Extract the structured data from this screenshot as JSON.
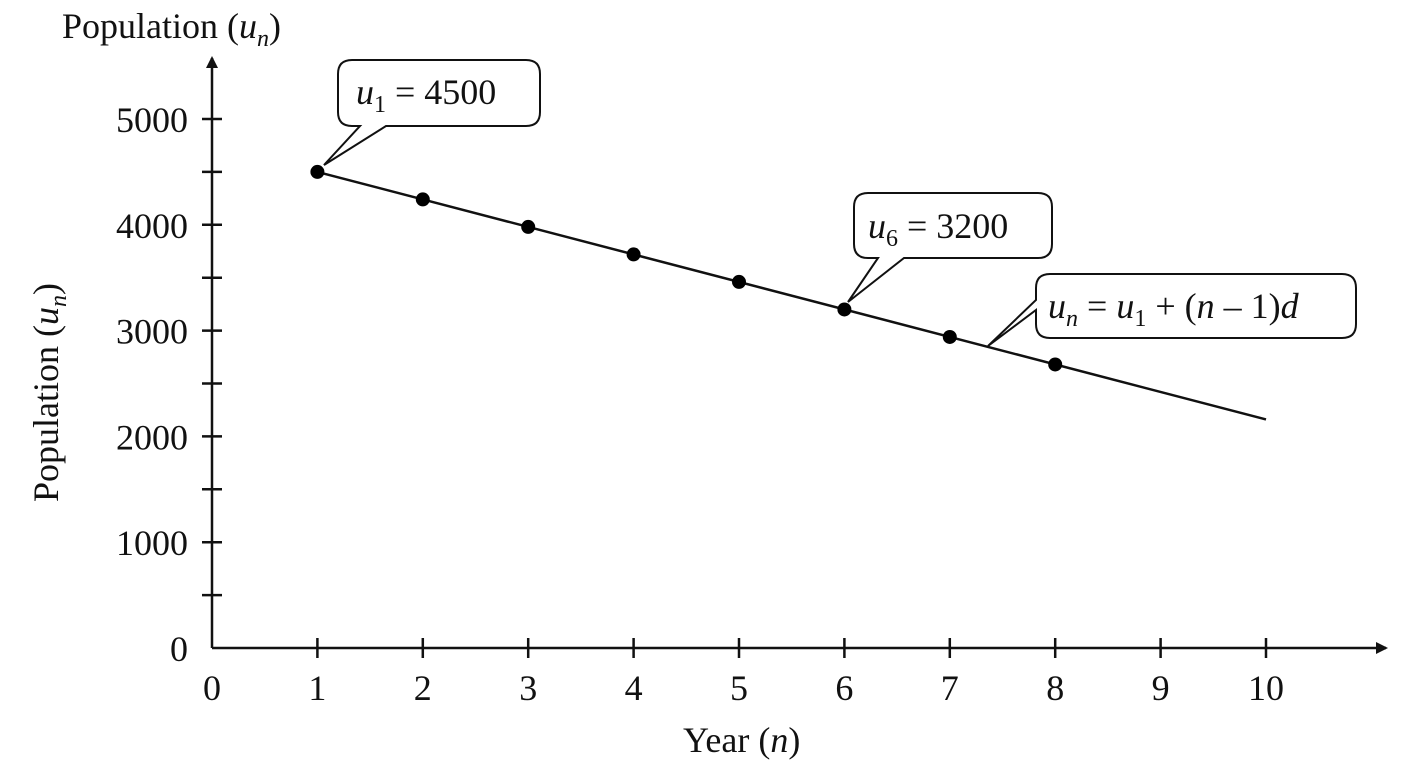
{
  "chart_data": {
    "type": "line",
    "title": "",
    "xlabel": {
      "text": "Year (",
      "var": "n",
      "close": ")"
    },
    "ylabel": {
      "text": "Population (",
      "var": "u",
      "sub": "n",
      "close": ")"
    },
    "ylabel_top": {
      "text": "Population (",
      "var": "u",
      "sub": "n",
      "close": ")"
    },
    "xlim": [
      0,
      11.1
    ],
    "ylim": [
      0,
      5500
    ],
    "x_ticks": [
      0,
      1,
      2,
      3,
      4,
      5,
      6,
      7,
      8,
      9,
      10
    ],
    "x_tick_labels": [
      "0",
      "1",
      "2",
      "3",
      "4",
      "5",
      "6",
      "7",
      "8",
      "9",
      "10"
    ],
    "y_ticks": [
      0,
      1000,
      2000,
      3000,
      4000,
      5000
    ],
    "y_tick_labels": [
      "0",
      "1000",
      "2000",
      "3000",
      "4000",
      "5000"
    ],
    "y_minor_ticks": [
      500,
      1500,
      2500,
      3500,
      4500
    ],
    "grid": false,
    "series": [
      {
        "x": [
          1,
          2,
          3,
          4,
          5,
          6,
          7,
          8
        ],
        "y": [
          4500,
          4240,
          3980,
          3720,
          3460,
          3200,
          2940,
          2680
        ],
        "line": {
          "x": [
            1,
            10
          ],
          "y": [
            4500,
            2160
          ]
        },
        "color": "#000000"
      }
    ],
    "annotations": [
      {
        "var": "u",
        "sub": "1",
        "rest": " = 4500"
      },
      {
        "var": "u",
        "sub": "6",
        "rest": " = 3200"
      },
      {
        "var": "u",
        "sub": "n",
        "rest": " = ",
        "var2": "u",
        "sub2": "1",
        "rest2": " + (",
        "var3": "n",
        "rest3": " – 1)",
        "var4": "d"
      }
    ]
  }
}
